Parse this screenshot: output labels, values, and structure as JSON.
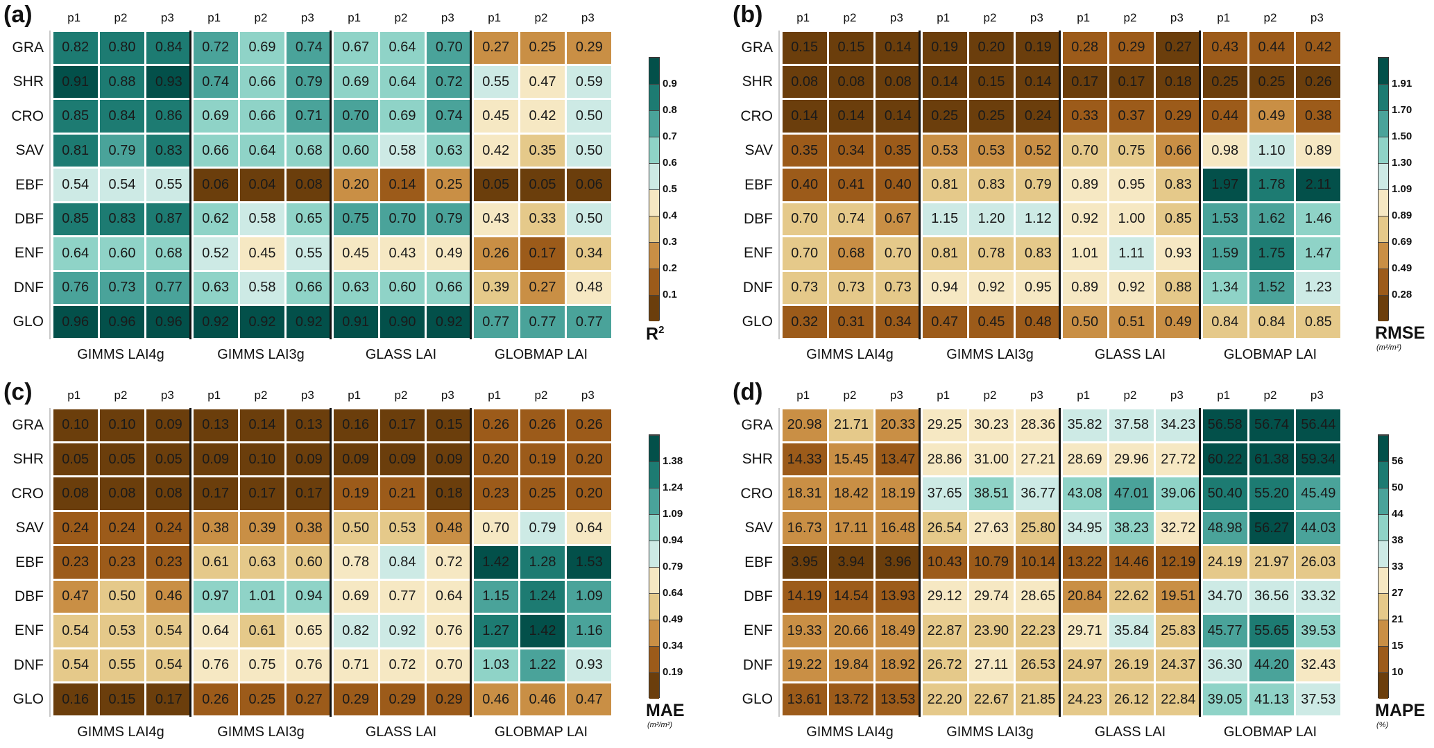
{
  "chart_data": [
    {
      "type": "heatmap",
      "panel": "(a)",
      "metric": "R2",
      "colorbar_title": "R",
      "colorbar_title_sup": "2",
      "colorbar_unit": "",
      "column_headers": [
        "p1",
        "p2",
        "p3",
        "p1",
        "p2",
        "p3",
        "p1",
        "p2",
        "p3",
        "p1",
        "p2",
        "p3"
      ],
      "groups": [
        "GIMMS LAI4g",
        "GIMMS LAI3g",
        "GLASS LAI",
        "GLOBMAP LAI"
      ],
      "rows": [
        "GRA",
        "SHR",
        "CRO",
        "SAV",
        "EBF",
        "DBF",
        "ENF",
        "DNF",
        "GLO"
      ],
      "colorbar_ticks": [
        "0.1",
        "0.2",
        "0.3",
        "0.4",
        "0.5",
        "0.6",
        "0.7",
        "0.8",
        "0.9"
      ],
      "thresholds": [
        0.1,
        0.2,
        0.3,
        0.4,
        0.5,
        0.6,
        0.7,
        0.8,
        0.9
      ],
      "values": [
        [
          "0.82",
          "0.80",
          "0.84",
          "0.72",
          "0.69",
          "0.74",
          "0.67",
          "0.64",
          "0.70",
          "0.27",
          "0.25",
          "0.29"
        ],
        [
          "0.91",
          "0.88",
          "0.93",
          "0.74",
          "0.66",
          "0.79",
          "0.69",
          "0.64",
          "0.72",
          "0.55",
          "0.47",
          "0.59"
        ],
        [
          "0.85",
          "0.84",
          "0.86",
          "0.69",
          "0.66",
          "0.71",
          "0.70",
          "0.69",
          "0.74",
          "0.45",
          "0.42",
          "0.50"
        ],
        [
          "0.81",
          "0.79",
          "0.83",
          "0.66",
          "0.64",
          "0.68",
          "0.60",
          "0.58",
          "0.63",
          "0.42",
          "0.35",
          "0.50"
        ],
        [
          "0.54",
          "0.54",
          "0.55",
          "0.06",
          "0.04",
          "0.08",
          "0.20",
          "0.14",
          "0.25",
          "0.05",
          "0.05",
          "0.06"
        ],
        [
          "0.85",
          "0.83",
          "0.87",
          "0.62",
          "0.58",
          "0.65",
          "0.75",
          "0.70",
          "0.79",
          "0.43",
          "0.33",
          "0.50"
        ],
        [
          "0.64",
          "0.60",
          "0.68",
          "0.52",
          "0.45",
          "0.55",
          "0.45",
          "0.43",
          "0.49",
          "0.26",
          "0.17",
          "0.34"
        ],
        [
          "0.76",
          "0.73",
          "0.77",
          "0.63",
          "0.58",
          "0.66",
          "0.63",
          "0.60",
          "0.66",
          "0.39",
          "0.27",
          "0.48"
        ],
        [
          "0.96",
          "0.96",
          "0.96",
          "0.92",
          "0.92",
          "0.92",
          "0.91",
          "0.90",
          "0.92",
          "0.77",
          "0.77",
          "0.77"
        ]
      ]
    },
    {
      "type": "heatmap",
      "panel": "(b)",
      "metric": "RMSE",
      "colorbar_title": "RMSE",
      "colorbar_title_sup": "",
      "colorbar_unit": "(m²/m²)",
      "column_headers": [
        "p1",
        "p2",
        "p3",
        "p1",
        "p2",
        "p3",
        "p1",
        "p2",
        "p3",
        "p1",
        "p2",
        "p3"
      ],
      "groups": [
        "GIMMS LAI4g",
        "GIMMS LAI3g",
        "GLASS LAI",
        "GLOBMAP LAI"
      ],
      "rows": [
        "GRA",
        "SHR",
        "CRO",
        "SAV",
        "EBF",
        "DBF",
        "ENF",
        "DNF",
        "GLO"
      ],
      "colorbar_ticks": [
        "0.28",
        "0.49",
        "0.69",
        "0.89",
        "1.09",
        "1.30",
        "1.50",
        "1.70",
        "1.91"
      ],
      "thresholds": [
        0.28,
        0.49,
        0.69,
        0.89,
        1.09,
        1.3,
        1.5,
        1.7,
        1.91
      ],
      "values": [
        [
          "0.15",
          "0.15",
          "0.14",
          "0.19",
          "0.20",
          "0.19",
          "0.28",
          "0.29",
          "0.27",
          "0.43",
          "0.44",
          "0.42"
        ],
        [
          "0.08",
          "0.08",
          "0.08",
          "0.14",
          "0.15",
          "0.14",
          "0.17",
          "0.17",
          "0.18",
          "0.25",
          "0.25",
          "0.26"
        ],
        [
          "0.14",
          "0.14",
          "0.14",
          "0.25",
          "0.25",
          "0.24",
          "0.33",
          "0.37",
          "0.29",
          "0.44",
          "0.49",
          "0.38"
        ],
        [
          "0.35",
          "0.34",
          "0.35",
          "0.53",
          "0.53",
          "0.52",
          "0.70",
          "0.75",
          "0.66",
          "0.98",
          "1.10",
          "0.89"
        ],
        [
          "0.40",
          "0.41",
          "0.40",
          "0.81",
          "0.83",
          "0.79",
          "0.89",
          "0.95",
          "0.83",
          "1.97",
          "1.78",
          "2.11"
        ],
        [
          "0.70",
          "0.74",
          "0.67",
          "1.15",
          "1.20",
          "1.12",
          "0.92",
          "1.00",
          "0.85",
          "1.53",
          "1.62",
          "1.46"
        ],
        [
          "0.70",
          "0.68",
          "0.70",
          "0.81",
          "0.78",
          "0.83",
          "1.01",
          "1.11",
          "0.93",
          "1.59",
          "1.75",
          "1.47"
        ],
        [
          "0.73",
          "0.73",
          "0.73",
          "0.94",
          "0.92",
          "0.95",
          "0.89",
          "0.92",
          "0.88",
          "1.34",
          "1.52",
          "1.23"
        ],
        [
          "0.32",
          "0.31",
          "0.34",
          "0.47",
          "0.45",
          "0.48",
          "0.50",
          "0.51",
          "0.49",
          "0.84",
          "0.84",
          "0.85"
        ]
      ]
    },
    {
      "type": "heatmap",
      "panel": "(c)",
      "metric": "MAE",
      "colorbar_title": "MAE",
      "colorbar_title_sup": "",
      "colorbar_unit": "(m²/m²)",
      "column_headers": [
        "p1",
        "p2",
        "p3",
        "p1",
        "p2",
        "p3",
        "p1",
        "p2",
        "p3",
        "p1",
        "p2",
        "p3"
      ],
      "groups": [
        "GIMMS LAI4g",
        "GIMMS LAI3g",
        "GLASS LAI",
        "GLOBMAP LAI"
      ],
      "rows": [
        "GRA",
        "SHR",
        "CRO",
        "SAV",
        "EBF",
        "DBF",
        "ENF",
        "DNF",
        "GLO"
      ],
      "colorbar_ticks": [
        "0.19",
        "0.34",
        "0.49",
        "0.64",
        "0.79",
        "0.94",
        "1.09",
        "1.24",
        "1.38"
      ],
      "thresholds": [
        0.19,
        0.34,
        0.49,
        0.64,
        0.79,
        0.94,
        1.09,
        1.24,
        1.38
      ],
      "values": [
        [
          "0.10",
          "0.10",
          "0.09",
          "0.13",
          "0.14",
          "0.13",
          "0.16",
          "0.17",
          "0.15",
          "0.26",
          "0.26",
          "0.26"
        ],
        [
          "0.05",
          "0.05",
          "0.05",
          "0.09",
          "0.10",
          "0.09",
          "0.09",
          "0.09",
          "0.09",
          "0.20",
          "0.19",
          "0.20"
        ],
        [
          "0.08",
          "0.08",
          "0.08",
          "0.17",
          "0.17",
          "0.17",
          "0.19",
          "0.21",
          "0.18",
          "0.23",
          "0.25",
          "0.20"
        ],
        [
          "0.24",
          "0.24",
          "0.24",
          "0.38",
          "0.39",
          "0.38",
          "0.50",
          "0.53",
          "0.48",
          "0.70",
          "0.79",
          "0.64"
        ],
        [
          "0.23",
          "0.23",
          "0.23",
          "0.61",
          "0.63",
          "0.60",
          "0.78",
          "0.84",
          "0.72",
          "1.42",
          "1.28",
          "1.53"
        ],
        [
          "0.47",
          "0.50",
          "0.46",
          "0.97",
          "1.01",
          "0.94",
          "0.69",
          "0.77",
          "0.64",
          "1.15",
          "1.24",
          "1.09"
        ],
        [
          "0.54",
          "0.53",
          "0.54",
          "0.64",
          "0.61",
          "0.65",
          "0.82",
          "0.92",
          "0.76",
          "1.27",
          "1.42",
          "1.16"
        ],
        [
          "0.54",
          "0.55",
          "0.54",
          "0.76",
          "0.75",
          "0.76",
          "0.71",
          "0.72",
          "0.70",
          "1.03",
          "1.22",
          "0.93"
        ],
        [
          "0.16",
          "0.15",
          "0.17",
          "0.26",
          "0.25",
          "0.27",
          "0.29",
          "0.29",
          "0.29",
          "0.46",
          "0.46",
          "0.47"
        ]
      ]
    },
    {
      "type": "heatmap",
      "panel": "(d)",
      "metric": "MAPE",
      "colorbar_title": "MAPE",
      "colorbar_title_sup": "",
      "colorbar_unit": "(%)",
      "column_headers": [
        "p1",
        "p2",
        "p3",
        "p1",
        "p2",
        "p3",
        "p1",
        "p2",
        "p3",
        "p1",
        "p2",
        "p3"
      ],
      "groups": [
        "GIMMS LAI4g",
        "GIMMS LAI3g",
        "GLASS LAI",
        "GLOBMAP LAI"
      ],
      "rows": [
        "GRA",
        "SHR",
        "CRO",
        "SAV",
        "EBF",
        "DBF",
        "ENF",
        "DNF",
        "GLO"
      ],
      "colorbar_ticks": [
        "10",
        "15",
        "21",
        "27",
        "33",
        "38",
        "44",
        "50",
        "56"
      ],
      "thresholds": [
        10,
        15,
        21,
        27,
        33,
        38,
        44,
        50,
        56
      ],
      "values": [
        [
          "20.98",
          "21.71",
          "20.33",
          "29.25",
          "30.23",
          "28.36",
          "35.82",
          "37.58",
          "34.23",
          "56.58",
          "56.74",
          "56.44"
        ],
        [
          "14.33",
          "15.45",
          "13.47",
          "28.86",
          "31.00",
          "27.21",
          "28.69",
          "29.96",
          "27.72",
          "60.22",
          "61.38",
          "59.34"
        ],
        [
          "18.31",
          "18.42",
          "18.19",
          "37.65",
          "38.51",
          "36.77",
          "43.08",
          "47.01",
          "39.06",
          "50.40",
          "55.20",
          "45.49"
        ],
        [
          "16.73",
          "17.11",
          "16.48",
          "26.54",
          "27.63",
          "25.80",
          "34.95",
          "38.23",
          "32.72",
          "48.98",
          "56.27",
          "44.03"
        ],
        [
          "3.95",
          "3.94",
          "3.96",
          "10.43",
          "10.79",
          "10.14",
          "13.22",
          "14.46",
          "12.19",
          "24.19",
          "21.97",
          "26.03"
        ],
        [
          "14.19",
          "14.54",
          "13.93",
          "29.12",
          "29.74",
          "28.65",
          "20.84",
          "22.62",
          "19.51",
          "34.70",
          "36.56",
          "33.32"
        ],
        [
          "19.33",
          "20.66",
          "18.49",
          "22.87",
          "23.90",
          "22.23",
          "29.71",
          "35.84",
          "25.83",
          "45.77",
          "55.65",
          "39.53"
        ],
        [
          "19.22",
          "19.84",
          "18.92",
          "26.72",
          "27.11",
          "26.53",
          "24.97",
          "26.19",
          "24.37",
          "36.30",
          "44.20",
          "32.43"
        ],
        [
          "13.61",
          "13.72",
          "13.53",
          "22.20",
          "22.67",
          "21.85",
          "24.23",
          "26.12",
          "22.84",
          "39.05",
          "41.13",
          "37.53"
        ]
      ]
    }
  ],
  "palette": [
    "#6b3e0c",
    "#9c5b1a",
    "#c98f45",
    "#e5c98a",
    "#f6e8c3",
    "#cdeae5",
    "#8fd3c7",
    "#4aa39a",
    "#1d7b72",
    "#03504a"
  ]
}
